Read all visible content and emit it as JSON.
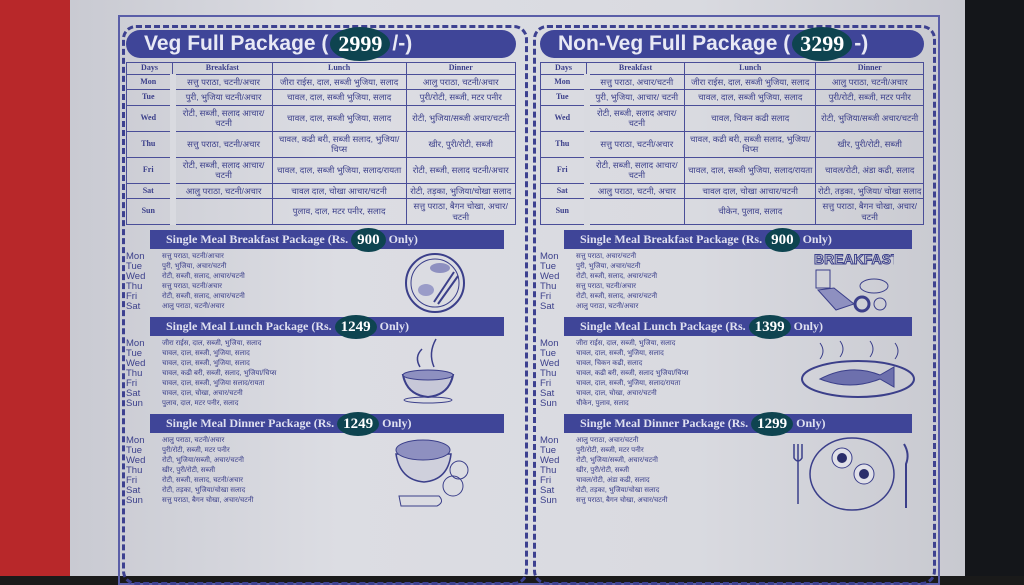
{
  "colors": {
    "ink": "#3b3f8a",
    "bar": "#3f4598",
    "badge": "#0e4450"
  },
  "days_header": "Days",
  "meal_headers": [
    "Breakfast",
    "Lunch",
    "Dinner"
  ],
  "veg": {
    "title": "Veg Full Package (",
    "price": "2999",
    "title_suffix": "/-)",
    "rows": [
      [
        "Mon",
        "सत्तु पराठा, चटनी/अचार",
        "जीरा राईस, दाल, सब्जी भुजिया, सलाद",
        "आलु पराठा, चटनी/अचार"
      ],
      [
        "Tue",
        "पुरी, भुजिया चटनी/अचार",
        "चावल, दाल, सब्जी भुजिया, सलाद",
        "पुरी/रोटी, सब्जी, मटर पनीर"
      ],
      [
        "Wed",
        "रोटी, सब्जी, सलाद आचार/चटनी",
        "चावल, दाल, सब्जी भुजिया, सलाद",
        "रोटी, भुजिया/सब्जी अचार/चटनी"
      ],
      [
        "Thu",
        "सत्तु पराठा, चटनी/अचार",
        "चावल, कढी बरी, सब्जी सलाद, भुजिया/चिप्स",
        "खीर, पुरी/रोटी, सब्जी"
      ],
      [
        "Fri",
        "रोटी, सब्जी, सलाद आचार/चटनी",
        "चावल, दाल, सब्जी भुजिया, सलाद/रायता",
        "रोटी, सब्जी, सलाद चटनी/अचार"
      ],
      [
        "Sat",
        "आलु पराठा, चटनी/अचार",
        "चावल दाल, चोखा आचार/चटनी",
        "रोटी, तड़का, भुजिया/चोखा सलाद"
      ],
      [
        "Sun",
        "",
        "पुलाव, दाल, मटर पनीर, सलाद",
        "सत्तु पराठा, बैगन चोखा, अचार/चटनी"
      ]
    ],
    "breakfast": {
      "label": "Single Meal Breakfast Package (Rs.",
      "price": "900",
      "suffix": "Only)",
      "items": [
        [
          "Mon",
          "सत्तु पराठा, चटनी/आचार"
        ],
        [
          "Tue",
          "पुरी, भुजिया, अचार/चटनी"
        ],
        [
          "Wed",
          "रोटी, सब्जी, सलाद, आचार/चटनी"
        ],
        [
          "Thu",
          "सत्तु पराठा, चटनी/अचार"
        ],
        [
          "Fri",
          "रोटी, सब्जी, सलाद, आचार/चटनी"
        ],
        [
          "Sat",
          "आलु पराठा, चटनी/अचार"
        ]
      ]
    },
    "lunch": {
      "label": "Single Meal Lunch Package (Rs.",
      "price": "1249",
      "suffix": "Only)",
      "items": [
        [
          "Mon",
          "जीरा राईस, दाल, सब्जी, भुजिया, सलाद"
        ],
        [
          "Tue",
          "चावल, दाल, सब्जी, भुजिया, सलाद"
        ],
        [
          "Wed",
          "चावल, दाल, सब्जी, भुजिया, सलाद"
        ],
        [
          "Thu",
          "चावल, कढी बरी, सब्जी, सलाद, भुजिया/चिप्स"
        ],
        [
          "Fri",
          "चावल, दाल, सब्जी, भुजिया सलाद/रायता"
        ],
        [
          "Sat",
          "चावल, दाल, चोखा, अचार/चटनी"
        ],
        [
          "Sun",
          "पुलाव, दाल, मटर पनीर, सलाद"
        ]
      ]
    },
    "dinner": {
      "label": "Single Meal Dinner Package (Rs.",
      "price": "1249",
      "suffix": "Only)",
      "items": [
        [
          "Mon",
          "आलु पराठा, चटनी/अचार"
        ],
        [
          "Tue",
          "पुरी/रोटी, सब्जी, मटर पनीर"
        ],
        [
          "Wed",
          "रोटी, भुजिया/सब्जी, अचार/चटनी"
        ],
        [
          "Thu",
          "खीर, पुरी/रोटी, सब्जी"
        ],
        [
          "Fri",
          "रोटी, सब्जी, सलाद, चटनी/अचार"
        ],
        [
          "Sat",
          "रोटी, तड़का, भुजिया/चोखा सलाद"
        ],
        [
          "Sun",
          "सत्तु पराठा, बैगन चोखा, अचार/चटनी"
        ]
      ]
    }
  },
  "nonveg": {
    "title": "Non-Veg Full Package (",
    "price": "3299",
    "title_suffix": "-)",
    "rows": [
      [
        "Mon",
        "सत्तु पराठा, अचार/चटनी",
        "जीरा राईस, दाल, सब्जी भुजिया, सलाद",
        "आलु पराठा, चटनी/अचार"
      ],
      [
        "Tue",
        "पुरी, भुजिया, आचार/ चटनी",
        "चावल, दाल, सब्जी भुजिया, सलाद",
        "पुरी/रोटी, सब्जी, मटर पनीर"
      ],
      [
        "Wed",
        "रोटी, सब्जी, सलाद अचार/चटनी",
        "चावल, चिकन कढी सलाद",
        "रोटी, भुजिया/सब्जी अचार/चटनी"
      ],
      [
        "Thu",
        "सत्तु पराठा, चटनी/अचार",
        "चावल, कढी बरी, सब्जी सलाद, भुजिया/चिप्स",
        "खीर, पुरी/रोटी, सब्जी"
      ],
      [
        "Fri",
        "रोटी, सब्जी, सलाद आचार/चटनी",
        "चावल, दाल, सब्जी भुजिया, सलाद/रायता",
        "चावल/रोटी, अंडा कढी, सलाद"
      ],
      [
        "Sat",
        "आलु पराठा, चटनी, अचार",
        "चावल दाल, चोखा आचार/चटनी",
        "रोटी, तड़का, भुजिया/ चोखा सलाद"
      ],
      [
        "Sun",
        "",
        "चीकेन, पुलाव, सलाद",
        "सत्तु पराठा, बैगन चोखा, अचार/चटनी"
      ]
    ],
    "breakfast": {
      "label": "Single Meal Breakfast Package (Rs.",
      "price": "900",
      "suffix": "Only)",
      "illus_text": "BREAKFAST",
      "items": [
        [
          "Mon",
          "सत्तु पराठा, अचार/चटनी"
        ],
        [
          "Tue",
          "पुरी, भुजिया, अचार/चटनी"
        ],
        [
          "Wed",
          "रोटी, सब्जी, सलाद, अचार/चटनी"
        ],
        [
          "Thu",
          "सत्तु पराठा, चटनी/अचार"
        ],
        [
          "Fri",
          "रोटी, सब्जी, सलाद, अचार/चटनी"
        ],
        [
          "Sat",
          "आलु पराठा, चटनी/अचार"
        ]
      ]
    },
    "lunch": {
      "label": "Single Meal Lunch Package (Rs.",
      "price": "1399",
      "suffix": "Only)",
      "items": [
        [
          "Mon",
          "जीरा राईस, दाल, सब्जी, भुजिया, सलाद"
        ],
        [
          "Tue",
          "चावल, दाल, सब्जी, भुजिया, सलाद"
        ],
        [
          "Wed",
          "चावल, चिकन कढी, सलाद"
        ],
        [
          "Thu",
          "चावल, कढी बरी, सब्जी, सलाद भुजिया/चिप्स"
        ],
        [
          "Fri",
          "चावल, दाल, सब्जी, भुजिया, सलाद/रायता"
        ],
        [
          "Sat",
          "चावल, दाल, चोखा, अचार/चटनी"
        ],
        [
          "Sun",
          "चीकेन, पुलाव, सलाद"
        ]
      ]
    },
    "dinner": {
      "label": "Single Meal Dinner Package (Rs.",
      "price": "1299",
      "suffix": "Only)",
      "items": [
        [
          "Mon",
          "आलु पराठा, अचार/चटनी"
        ],
        [
          "Tue",
          "पुरी/रोटी, सब्जी, मटर पनीर"
        ],
        [
          "Wed",
          "रोटी, भुजिया/सब्जी, अचार/चटनी"
        ],
        [
          "Thu",
          "खीर, पुरी/रोटी, सब्जी"
        ],
        [
          "Fri",
          "चावल/रोटी, अंडा कढी, सलाद"
        ],
        [
          "Sat",
          "रोटी, तड़का, भुजिया/चोखा सलाद"
        ],
        [
          "Sun",
          "सत्तु पराठा, बैगन चोखा, अचार/चटनी"
        ]
      ]
    }
  }
}
